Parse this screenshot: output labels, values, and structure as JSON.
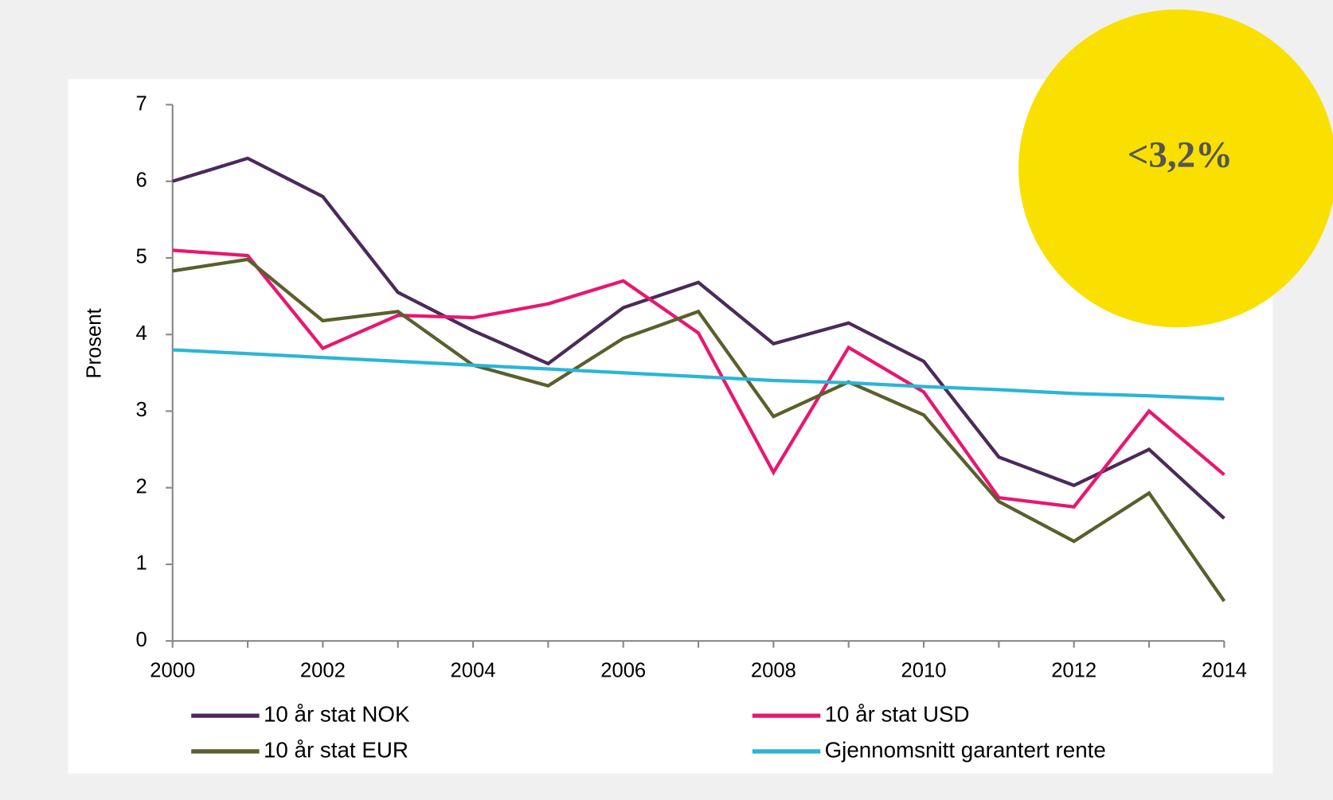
{
  "chart_data": {
    "type": "line",
    "ylabel": "Prosent",
    "annotation": "<3,2%",
    "x": [
      2000,
      2001,
      2002,
      2003,
      2004,
      2005,
      2006,
      2007,
      2008,
      2009,
      2010,
      2011,
      2012,
      2013,
      2014
    ],
    "xlim": [
      2000,
      2014
    ],
    "xticks": [
      2000,
      2002,
      2004,
      2006,
      2008,
      2010,
      2012,
      2014
    ],
    "ylim": [
      0,
      7
    ],
    "yticks": [
      0,
      1,
      2,
      3,
      4,
      5,
      6,
      7
    ],
    "grid": false,
    "series": [
      {
        "name": "10 år stat NOK",
        "color": "#4b2a5a",
        "values": [
          6.0,
          6.3,
          5.8,
          4.55,
          4.05,
          3.62,
          4.35,
          4.68,
          3.88,
          4.15,
          3.65,
          2.4,
          2.03,
          2.5,
          1.6
        ]
      },
      {
        "name": "10 år stat USD",
        "color": "#e8176f",
        "values": [
          5.1,
          5.03,
          3.82,
          4.25,
          4.22,
          4.4,
          4.7,
          4.02,
          2.2,
          3.83,
          3.25,
          1.87,
          1.75,
          3.0,
          2.17
        ]
      },
      {
        "name": "10 år stat EUR",
        "color": "#5a5f2c",
        "values": [
          4.83,
          4.98,
          4.18,
          4.3,
          3.6,
          3.33,
          3.95,
          4.3,
          2.93,
          3.38,
          2.95,
          1.82,
          1.3,
          1.93,
          0.52
        ]
      },
      {
        "name": "Gjennomsnitt garantert rente",
        "color": "#2bb5d6",
        "values": [
          3.8,
          3.75,
          3.7,
          3.65,
          3.6,
          3.55,
          3.5,
          3.45,
          3.4,
          3.37,
          3.32,
          3.28,
          3.23,
          3.2,
          3.16
        ]
      }
    ]
  }
}
